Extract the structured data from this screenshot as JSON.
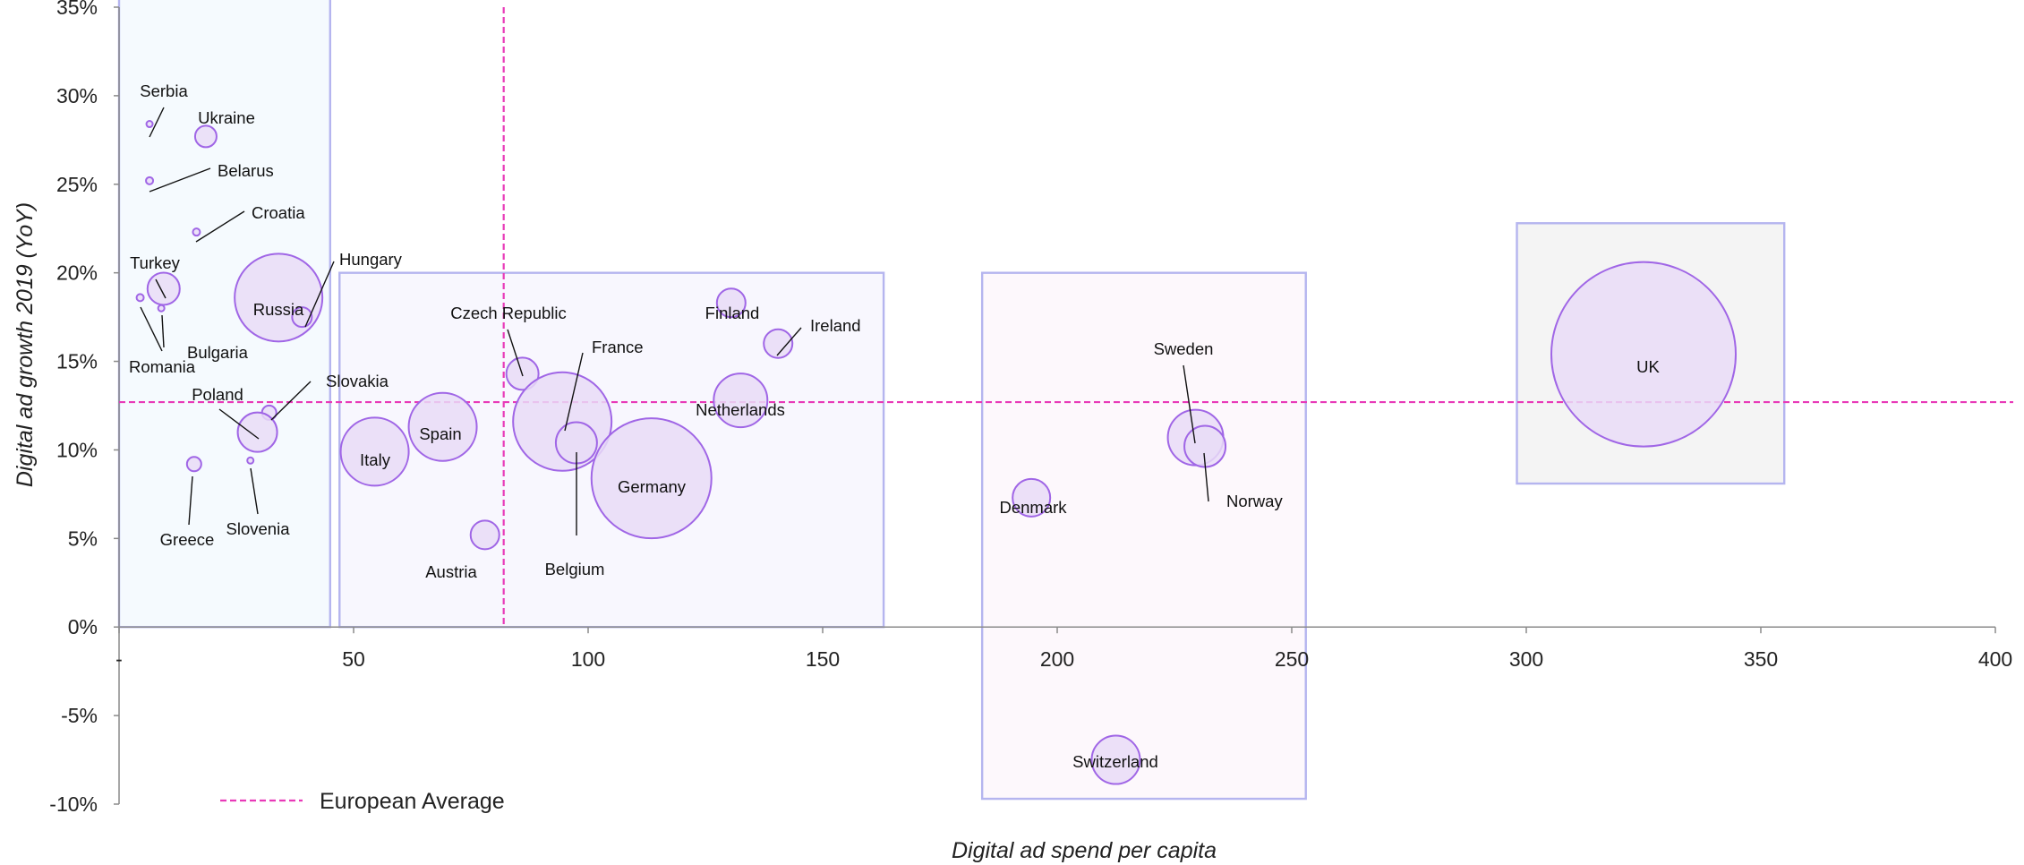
{
  "chart_data": {
    "type": "scatter",
    "variant": "bubble",
    "title": "",
    "xlabel": "Digital ad spend per capita",
    "ylabel": "Digital ad growth 2019 (YoY)",
    "xlim": [
      0,
      400
    ],
    "ylim": [
      -0.1,
      0.35
    ],
    "x_ticks": [
      {
        "value": 0,
        "label": "-"
      },
      {
        "value": 50,
        "label": "50"
      },
      {
        "value": 100,
        "label": "100"
      },
      {
        "value": 150,
        "label": "150"
      },
      {
        "value": 200,
        "label": "200"
      },
      {
        "value": 250,
        "label": "250"
      },
      {
        "value": 300,
        "label": "300"
      },
      {
        "value": 350,
        "label": "350"
      },
      {
        "value": 400,
        "label": "400"
      }
    ],
    "y_ticks": [
      {
        "value": -0.1,
        "label": "-10%"
      },
      {
        "value": -0.05,
        "label": "-5%"
      },
      {
        "value": 0.0,
        "label": "0%"
      },
      {
        "value": 0.05,
        "label": "5%"
      },
      {
        "value": 0.1,
        "label": "10%"
      },
      {
        "value": 0.15,
        "label": "15%"
      },
      {
        "value": 0.2,
        "label": "20%"
      },
      {
        "value": 0.25,
        "label": "25%"
      },
      {
        "value": 0.3,
        "label": "30%"
      },
      {
        "value": 0.35,
        "label": "35%"
      }
    ],
    "grid": false,
    "reference_lines": {
      "name": "European Average",
      "x": 82,
      "y": 0.127,
      "color": "#e83ab8",
      "style": "dashed"
    },
    "legend": {
      "position": "bottom-left",
      "entries": [
        "European Average"
      ]
    },
    "colors": {
      "bubble_fill": "#e9dcf7",
      "bubble_stroke": "#a066e6",
      "leader": "#111111",
      "axis": "#8a8a8a"
    },
    "regions": [
      {
        "name": "group-1",
        "x": [
          0,
          45
        ],
        "y": [
          0.0,
          0.357
        ],
        "fill": "#f5fafe",
        "stroke": "#b5b5ef"
      },
      {
        "name": "group-2",
        "x": [
          47,
          163
        ],
        "y": [
          0.0,
          0.2
        ],
        "fill": "#f8f7fe",
        "stroke": "#b5b5ef"
      },
      {
        "name": "group-3",
        "x": [
          184,
          253
        ],
        "y": [
          -0.097,
          0.2
        ],
        "fill": "#fdf8fc",
        "stroke": "#b5b5ef"
      },
      {
        "name": "group-4",
        "x": [
          298,
          355
        ],
        "y": [
          0.081,
          0.228
        ],
        "fill": "#f4f4f4",
        "stroke": "#b5b5ef"
      }
    ],
    "points": [
      {
        "name": "Serbia",
        "x": 6.5,
        "y": 0.284,
        "size": 3.5
      },
      {
        "name": "Ukraine",
        "x": 18.5,
        "y": 0.277,
        "size": 12
      },
      {
        "name": "Belarus",
        "x": 6.5,
        "y": 0.252,
        "size": 4
      },
      {
        "name": "Croatia",
        "x": 16.5,
        "y": 0.223,
        "size": 4
      },
      {
        "name": "Turkey",
        "x": 9.5,
        "y": 0.191,
        "size": 18
      },
      {
        "name": "Romania",
        "x": 4.5,
        "y": 0.186,
        "size": 4
      },
      {
        "name": "Bulgaria",
        "x": 9,
        "y": 0.18,
        "size": 3.5
      },
      {
        "name": "Russia",
        "x": 34,
        "y": 0.186,
        "size": 49
      },
      {
        "name": "Hungary",
        "x": 39,
        "y": 0.175,
        "size": 11
      },
      {
        "name": "Slovakia",
        "x": 32,
        "y": 0.121,
        "size": 8
      },
      {
        "name": "Poland",
        "x": 29.5,
        "y": 0.11,
        "size": 22
      },
      {
        "name": "Slovenia",
        "x": 28,
        "y": 0.094,
        "size": 3.5
      },
      {
        "name": "Greece",
        "x": 16,
        "y": 0.092,
        "size": 8
      },
      {
        "name": "Italy",
        "x": 54.5,
        "y": 0.099,
        "size": 38
      },
      {
        "name": "Spain",
        "x": 69,
        "y": 0.113,
        "size": 38
      },
      {
        "name": "Austria",
        "x": 78,
        "y": 0.052,
        "size": 16
      },
      {
        "name": "Czech Republic",
        "x": 86,
        "y": 0.143,
        "size": 18
      },
      {
        "name": "France",
        "x": 94.5,
        "y": 0.116,
        "size": 55
      },
      {
        "name": "Belgium",
        "x": 97.5,
        "y": 0.104,
        "size": 23
      },
      {
        "name": "Germany",
        "x": 113.5,
        "y": 0.084,
        "size": 67
      },
      {
        "name": "Finland",
        "x": 130.5,
        "y": 0.183,
        "size": 16
      },
      {
        "name": "Ireland",
        "x": 140.5,
        "y": 0.16,
        "size": 16
      },
      {
        "name": "Netherlands",
        "x": 132.5,
        "y": 0.128,
        "size": 30
      },
      {
        "name": "Denmark",
        "x": 194.5,
        "y": 0.073,
        "size": 21
      },
      {
        "name": "Switzerland",
        "x": 212.5,
        "y": -0.075,
        "size": 27
      },
      {
        "name": "Sweden",
        "x": 229.5,
        "y": 0.107,
        "size": 31
      },
      {
        "name": "Norway",
        "x": 231.5,
        "y": 0.102,
        "size": 23
      },
      {
        "name": "UK",
        "x": 325,
        "y": 0.154,
        "size": 103
      }
    ]
  }
}
